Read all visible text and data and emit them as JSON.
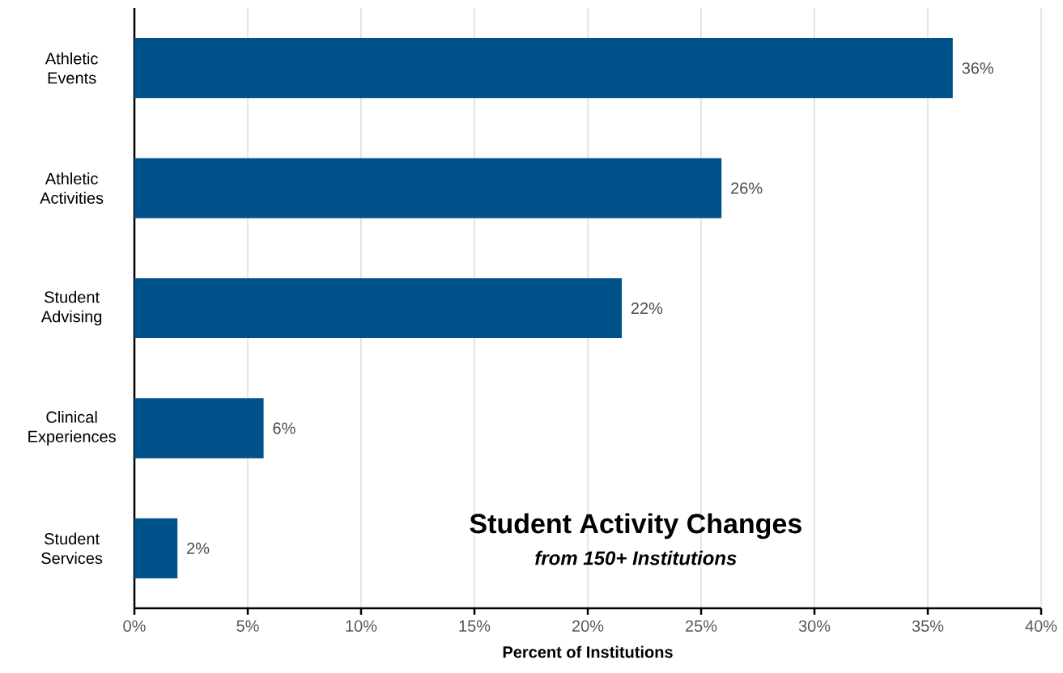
{
  "chart_data": {
    "type": "bar",
    "orientation": "horizontal",
    "title": "Student Activity Changes",
    "subtitle": "*from 150+ Institutions*",
    "xlabel": "Percent of Institutions",
    "categories": [
      "Athletic Events",
      "Athletic Activities",
      "Student Advising",
      "Clinical Experiences",
      "Student Services"
    ],
    "values": [
      36.1,
      25.9,
      21.5,
      5.7,
      1.9
    ],
    "value_labels": [
      "36%",
      "26%",
      "22%",
      "6%",
      "2%"
    ],
    "color": "#00538a",
    "xlim": [
      0,
      40
    ],
    "xticks": [
      {
        "value": 0,
        "label": "0%"
      },
      {
        "value": 5,
        "label": "5%"
      },
      {
        "value": 10,
        "label": "10%"
      },
      {
        "value": 15,
        "label": "15%"
      },
      {
        "value": 20,
        "label": "20%"
      },
      {
        "value": 25,
        "label": "25%"
      },
      {
        "value": 30,
        "label": "30%"
      },
      {
        "value": 35,
        "label": "35%"
      },
      {
        "value": 40,
        "label": "40%"
      }
    ],
    "grid": "x"
  }
}
